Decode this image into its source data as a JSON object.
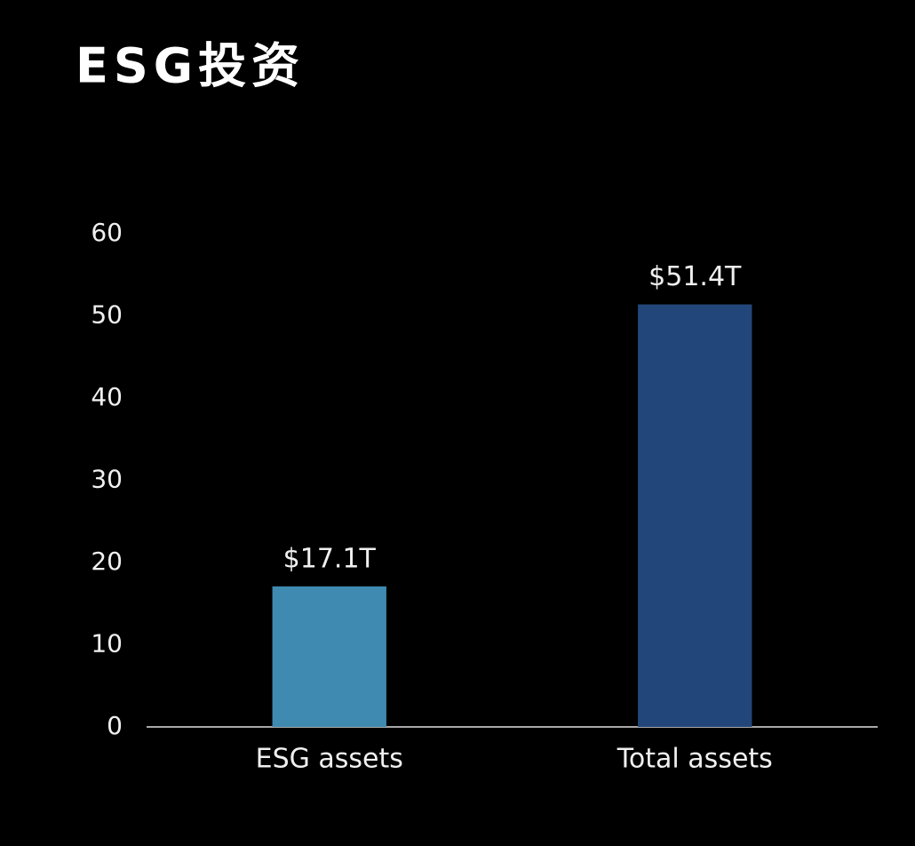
{
  "chart_data": {
    "type": "bar",
    "title": "ESG投资",
    "categories": [
      "ESG assets",
      "Total assets"
    ],
    "values": [
      17.1,
      51.4
    ],
    "value_labels": [
      "$17.1T",
      "$51.4T"
    ],
    "colors": [
      "#3f8ab0",
      "#23467a"
    ],
    "ylim": [
      0,
      60
    ],
    "yticks": [
      0,
      10,
      20,
      30,
      40,
      50,
      60
    ],
    "grid": false
  }
}
